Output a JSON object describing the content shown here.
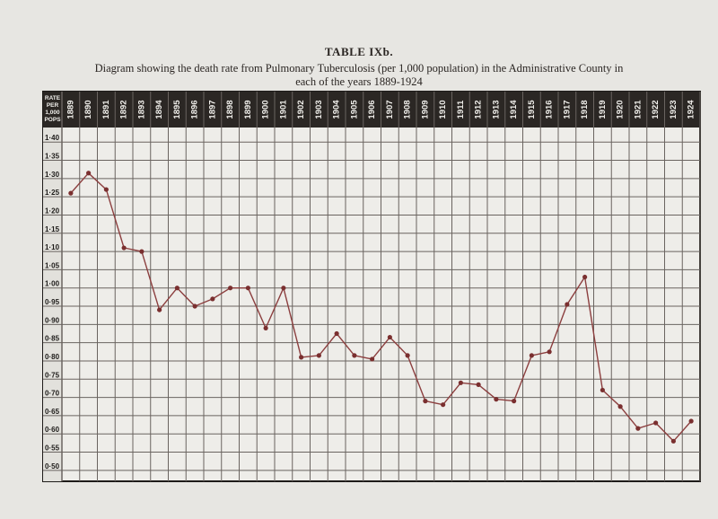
{
  "title": "TABLE IXb.",
  "subtitle_line1": "Diagram showing the death rate from Pulmonary Tuberculosis (per 1,000 population) in the Administrative County in",
  "subtitle_line2": "each of the years 1889-1924",
  "chart_data": {
    "type": "line",
    "title": "TABLE IXb.",
    "corner_label": [
      "RATE",
      "PER",
      "1,000",
      "POPS"
    ],
    "x": [
      "1889",
      "1890",
      "1891",
      "1892",
      "1893",
      "1894",
      "1895",
      "1896",
      "1897",
      "1898",
      "1899",
      "1900",
      "1901",
      "1902",
      "1903",
      "1904",
      "1905",
      "1906",
      "1907",
      "1908",
      "1909",
      "1910",
      "1911",
      "1912",
      "1913",
      "1914",
      "1915",
      "1916",
      "1917",
      "1918",
      "1919",
      "1920",
      "1921",
      "1922",
      "1923",
      "1924"
    ],
    "y_tick_labels": [
      "1·40",
      "1·35",
      "1·30",
      "1·25",
      "1·20",
      "1·15",
      "1·10",
      "1·05",
      "1·00",
      "0·95",
      "0·90",
      "0·85",
      "0·80",
      "0·75",
      "0·70",
      "0·65",
      "0·60",
      "0·55",
      "0·50"
    ],
    "y_tick_values": [
      1.4,
      1.35,
      1.3,
      1.25,
      1.2,
      1.15,
      1.1,
      1.05,
      1.0,
      0.95,
      0.9,
      0.85,
      0.8,
      0.75,
      0.7,
      0.65,
      0.6,
      0.55,
      0.5
    ],
    "ylim": [
      0.47,
      1.44
    ],
    "grid": true,
    "colors": {
      "line": "#8c3f3f",
      "marker": "#7a2f2f",
      "grid": "#6a6460",
      "header": "#2b2724",
      "paper": "#e7e6e2"
    },
    "series": [
      {
        "values": [
          1.26,
          1.315,
          1.27,
          1.11,
          1.1,
          0.94,
          1.0,
          0.95,
          0.97,
          1.0,
          1.0,
          0.89,
          1.0,
          0.81,
          0.815,
          0.875,
          0.815,
          0.805,
          0.865,
          0.815,
          0.69,
          0.68,
          0.74,
          0.735,
          0.695,
          0.69,
          0.815,
          0.825,
          0.955,
          1.03,
          0.72,
          0.675,
          0.615,
          0.63,
          0.58,
          0.635
        ]
      }
    ]
  }
}
